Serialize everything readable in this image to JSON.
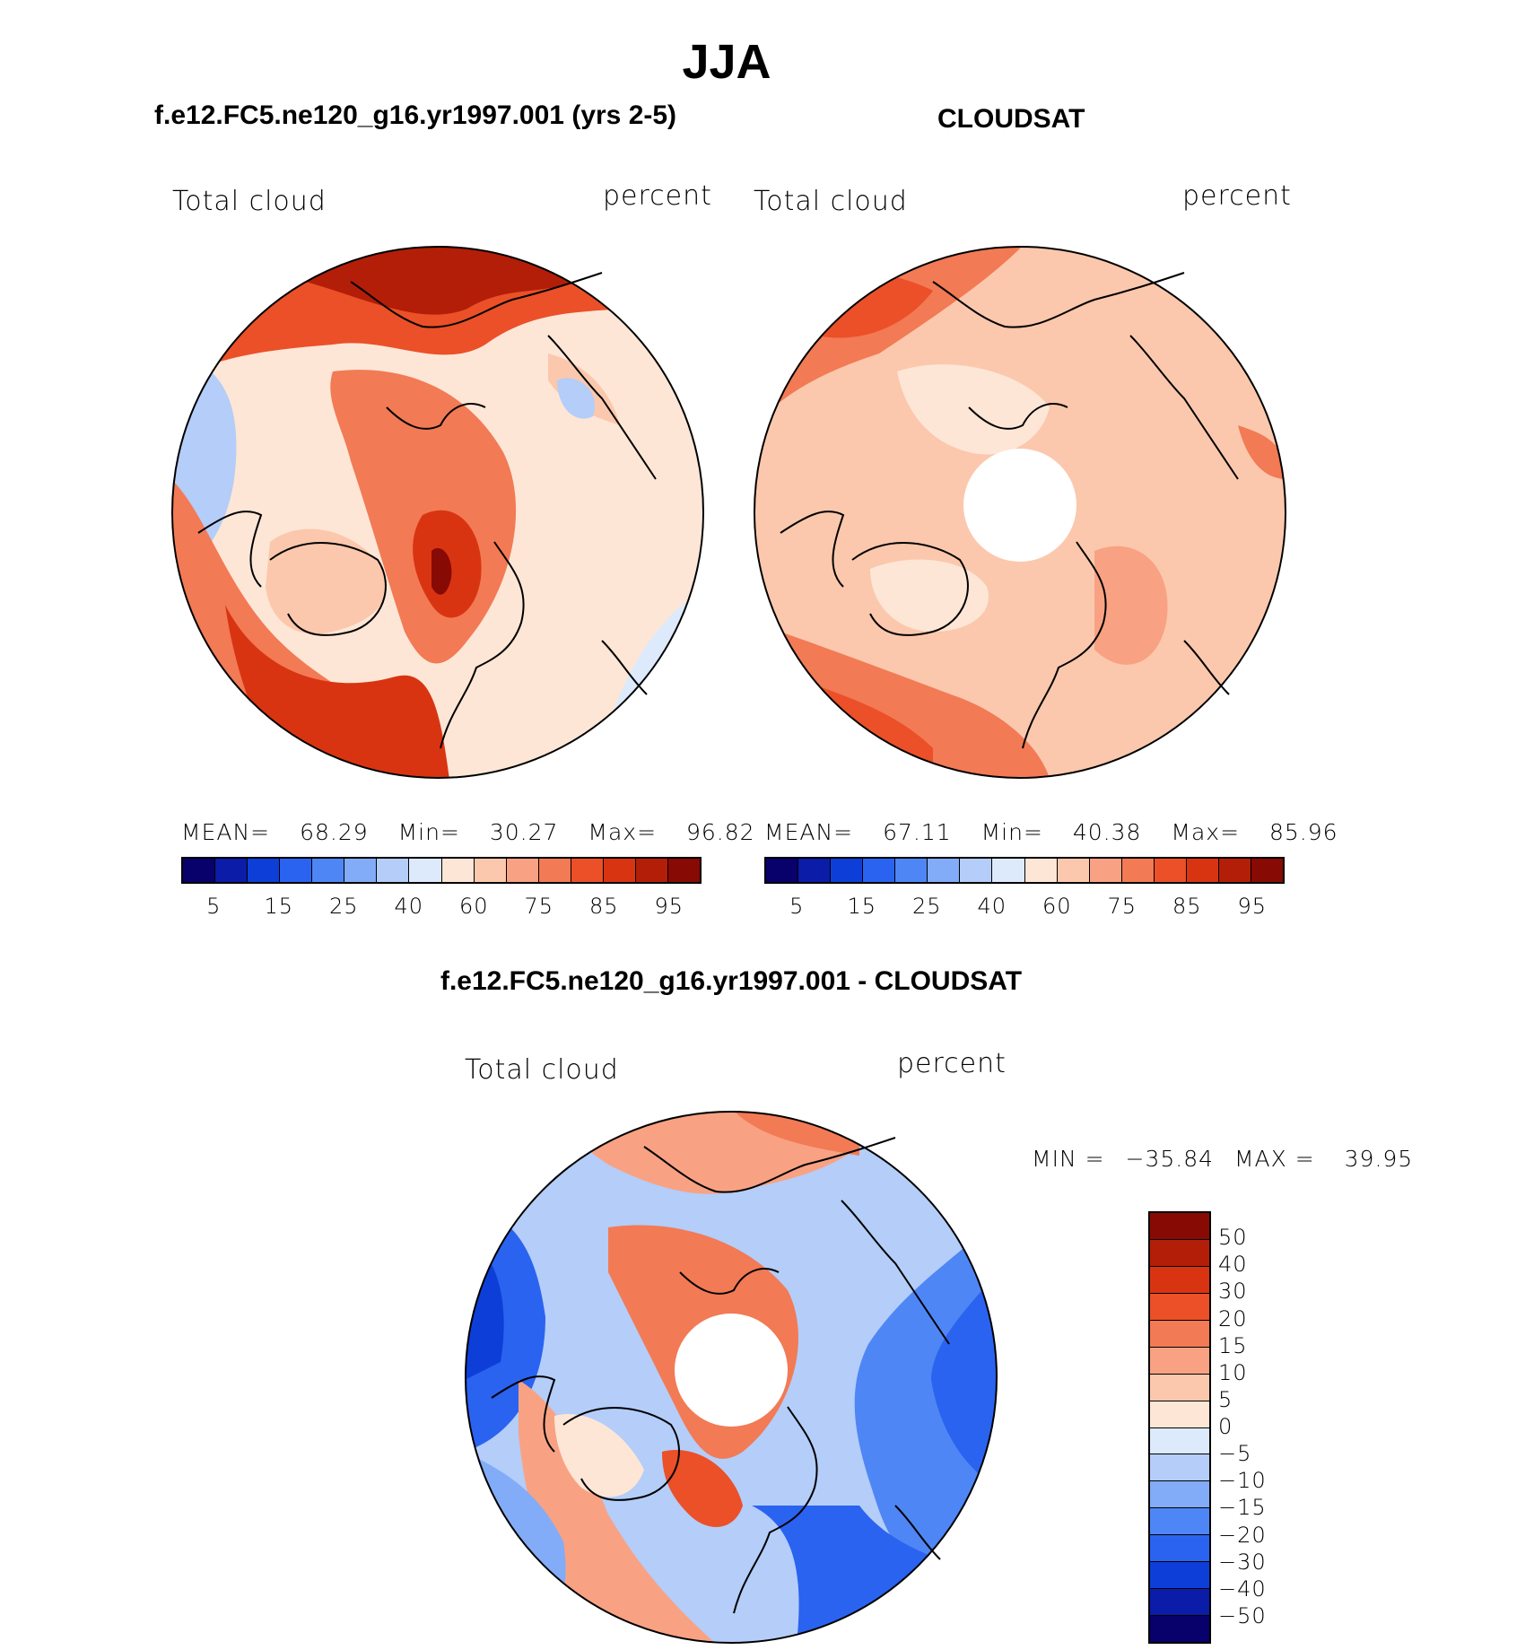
{
  "title": "JJA",
  "panels": [
    {
      "id": "model",
      "title": "f.e12.FC5.ne120_g16.yr1997.001 (yrs 2-5)",
      "variable": "Total cloud",
      "units": "percent",
      "mean_label": "MEAN=",
      "mean": "68.29",
      "min_label": "Min=",
      "min": "30.27",
      "max_label": "Max=",
      "max": "96.82",
      "colorbar_ticks": [
        "5",
        "15",
        "25",
        "40",
        "60",
        "75",
        "85",
        "95"
      ]
    },
    {
      "id": "obs",
      "title": "CLOUDSAT",
      "variable": "Total cloud",
      "units": "percent",
      "mean_label": "MEAN=",
      "mean": "67.11",
      "min_label": "Min=",
      "min": "40.38",
      "max_label": "Max=",
      "max": "85.96",
      "colorbar_ticks": [
        "5",
        "15",
        "25",
        "40",
        "60",
        "75",
        "85",
        "95"
      ]
    }
  ],
  "difference": {
    "title": "f.e12.FC5.ne120_g16.yr1997.001 - CLOUDSAT",
    "variable": "Total cloud",
    "units": "percent",
    "min_label": "MIN =",
    "min": "−35.84",
    "max_label": "MAX =",
    "max": "39.95",
    "colorbar_ticks": [
      "50",
      "40",
      "30",
      "20",
      "15",
      "10",
      "5",
      "0",
      "−5",
      "−10",
      "−15",
      "−20",
      "−30",
      "−40",
      "−50"
    ]
  },
  "colors": {
    "abs_scale": [
      "#08006b",
      "#0a1ca8",
      "#0d3fd8",
      "#2a63f0",
      "#4f86f5",
      "#82acf7",
      "#b4cdf9",
      "#dceafc",
      "#fde6d6",
      "#fbc8ad",
      "#f8a283",
      "#f27a55",
      "#eb5028",
      "#d93412",
      "#b31e08",
      "#880a04"
    ],
    "diff_scale": [
      "#880a04",
      "#b31e08",
      "#d93412",
      "#eb5028",
      "#f27a55",
      "#f8a283",
      "#fbc8ad",
      "#fde6d6",
      "#dceafc",
      "#b4cdf9",
      "#82acf7",
      "#4f86f5",
      "#2a63f0",
      "#0d3fd8",
      "#0a1ca8",
      "#08006b"
    ]
  }
}
